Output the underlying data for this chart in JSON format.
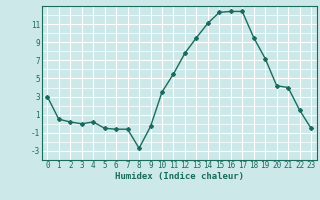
{
  "x": [
    0,
    1,
    2,
    3,
    4,
    5,
    6,
    7,
    8,
    9,
    10,
    11,
    12,
    13,
    14,
    15,
    16,
    17,
    18,
    19,
    20,
    21,
    22,
    23
  ],
  "y": [
    3,
    0.5,
    0.2,
    0.0,
    0.2,
    -0.5,
    -0.6,
    -0.6,
    -2.7,
    -0.3,
    3.5,
    5.5,
    7.8,
    9.5,
    11.1,
    12.3,
    12.4,
    12.4,
    9.5,
    7.2,
    4.2,
    4.0,
    1.5,
    -0.5
  ],
  "xlabel": "Humidex (Indice chaleur)",
  "line_color": "#1a6b5e",
  "bg_color": "#cce8e8",
  "grid_color": "#ffffff",
  "tick_color": "#1a6b5e",
  "ylim": [
    -4,
    13
  ],
  "xlim": [
    -0.5,
    23.5
  ],
  "yticks": [
    -3,
    -1,
    1,
    3,
    5,
    7,
    9,
    11
  ],
  "xticks": [
    0,
    1,
    2,
    3,
    4,
    5,
    6,
    7,
    8,
    9,
    10,
    11,
    12,
    13,
    14,
    15,
    16,
    17,
    18,
    19,
    20,
    21,
    22,
    23
  ],
  "xlabel_fontsize": 6.5,
  "tick_fontsize": 5.5,
  "marker": "D",
  "marker_size": 2.0,
  "linewidth": 1.0
}
